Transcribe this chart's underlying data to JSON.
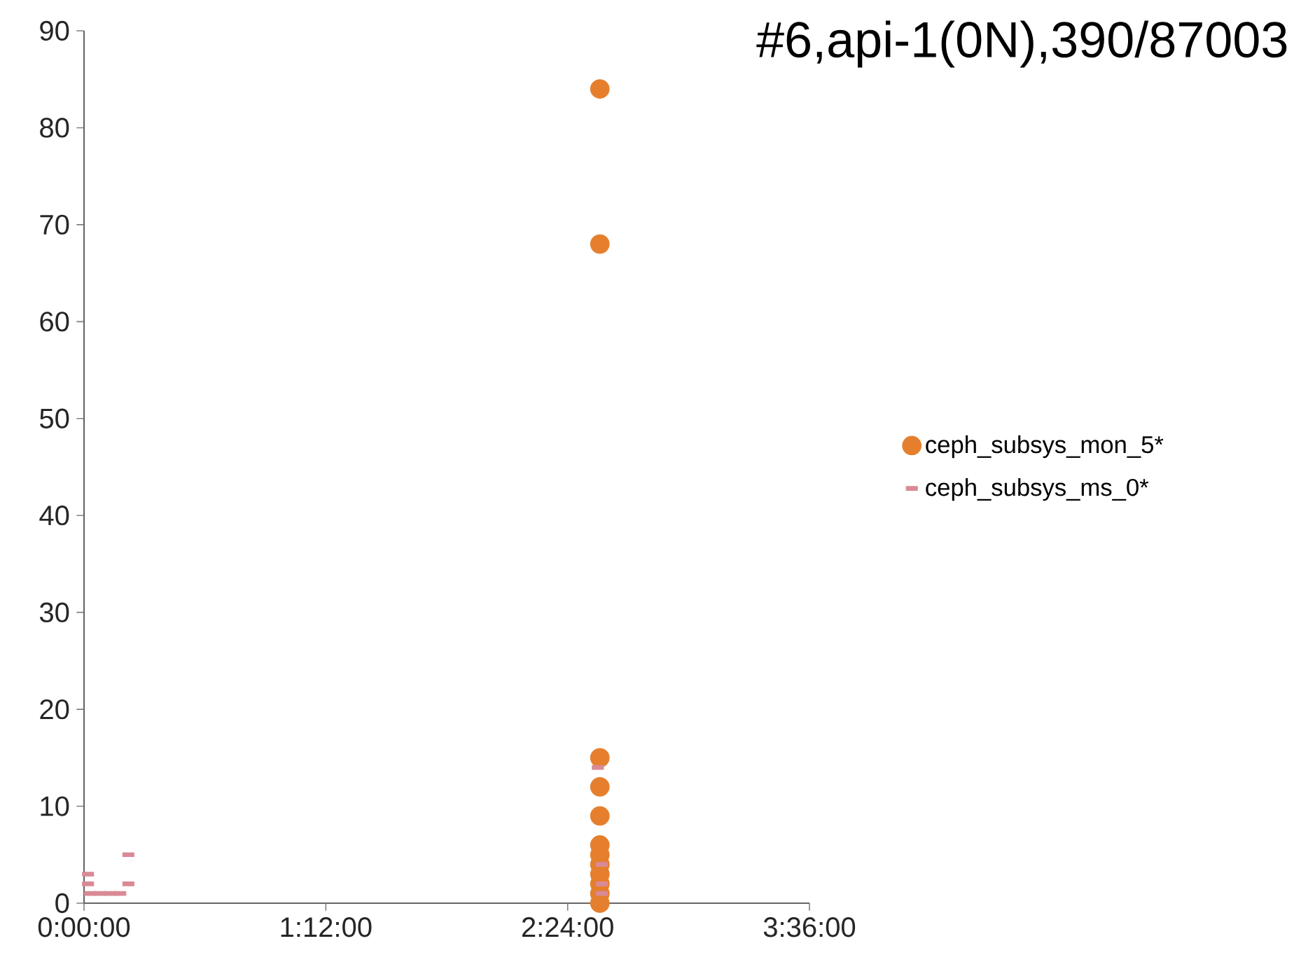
{
  "chart_data": {
    "type": "scatter",
    "title": "#6,api-1(0N),390/87003",
    "xlim": [
      0,
      3.6
    ],
    "ylim": [
      0,
      90
    ],
    "xticks": [
      {
        "value": 0,
        "label": "0:00:00"
      },
      {
        "value": 1.2,
        "label": "1:12:00"
      },
      {
        "value": 2.4,
        "label": "2:24:00"
      },
      {
        "value": 3.6,
        "label": "3:36:00"
      }
    ],
    "yticks": [
      0,
      10,
      20,
      30,
      40,
      50,
      60,
      70,
      80,
      90
    ],
    "grid": false,
    "legend": "right",
    "series": [
      {
        "name": "ceph_subsys_mon_5*",
        "color": "#e57f2d",
        "marker": "circle",
        "x": [
          2.56,
          2.56,
          2.56,
          2.56,
          2.56,
          2.56,
          2.56,
          2.56,
          2.56,
          2.56,
          2.56,
          2.56
        ],
        "values": [
          84,
          68,
          15,
          12,
          9,
          6,
          5,
          4,
          3,
          2,
          1,
          0
        ]
      },
      {
        "name": "ceph_subsys_ms_0*",
        "color": "#d98a95",
        "marker": "square",
        "x": [
          0.02,
          0.02,
          0.03,
          0.08,
          0.13,
          0.18,
          0.22,
          0.22,
          2.55,
          2.57,
          2.57,
          2.57
        ],
        "values": [
          3,
          2,
          1,
          1,
          1,
          1,
          2,
          5,
          14,
          4,
          2,
          1
        ]
      }
    ]
  }
}
